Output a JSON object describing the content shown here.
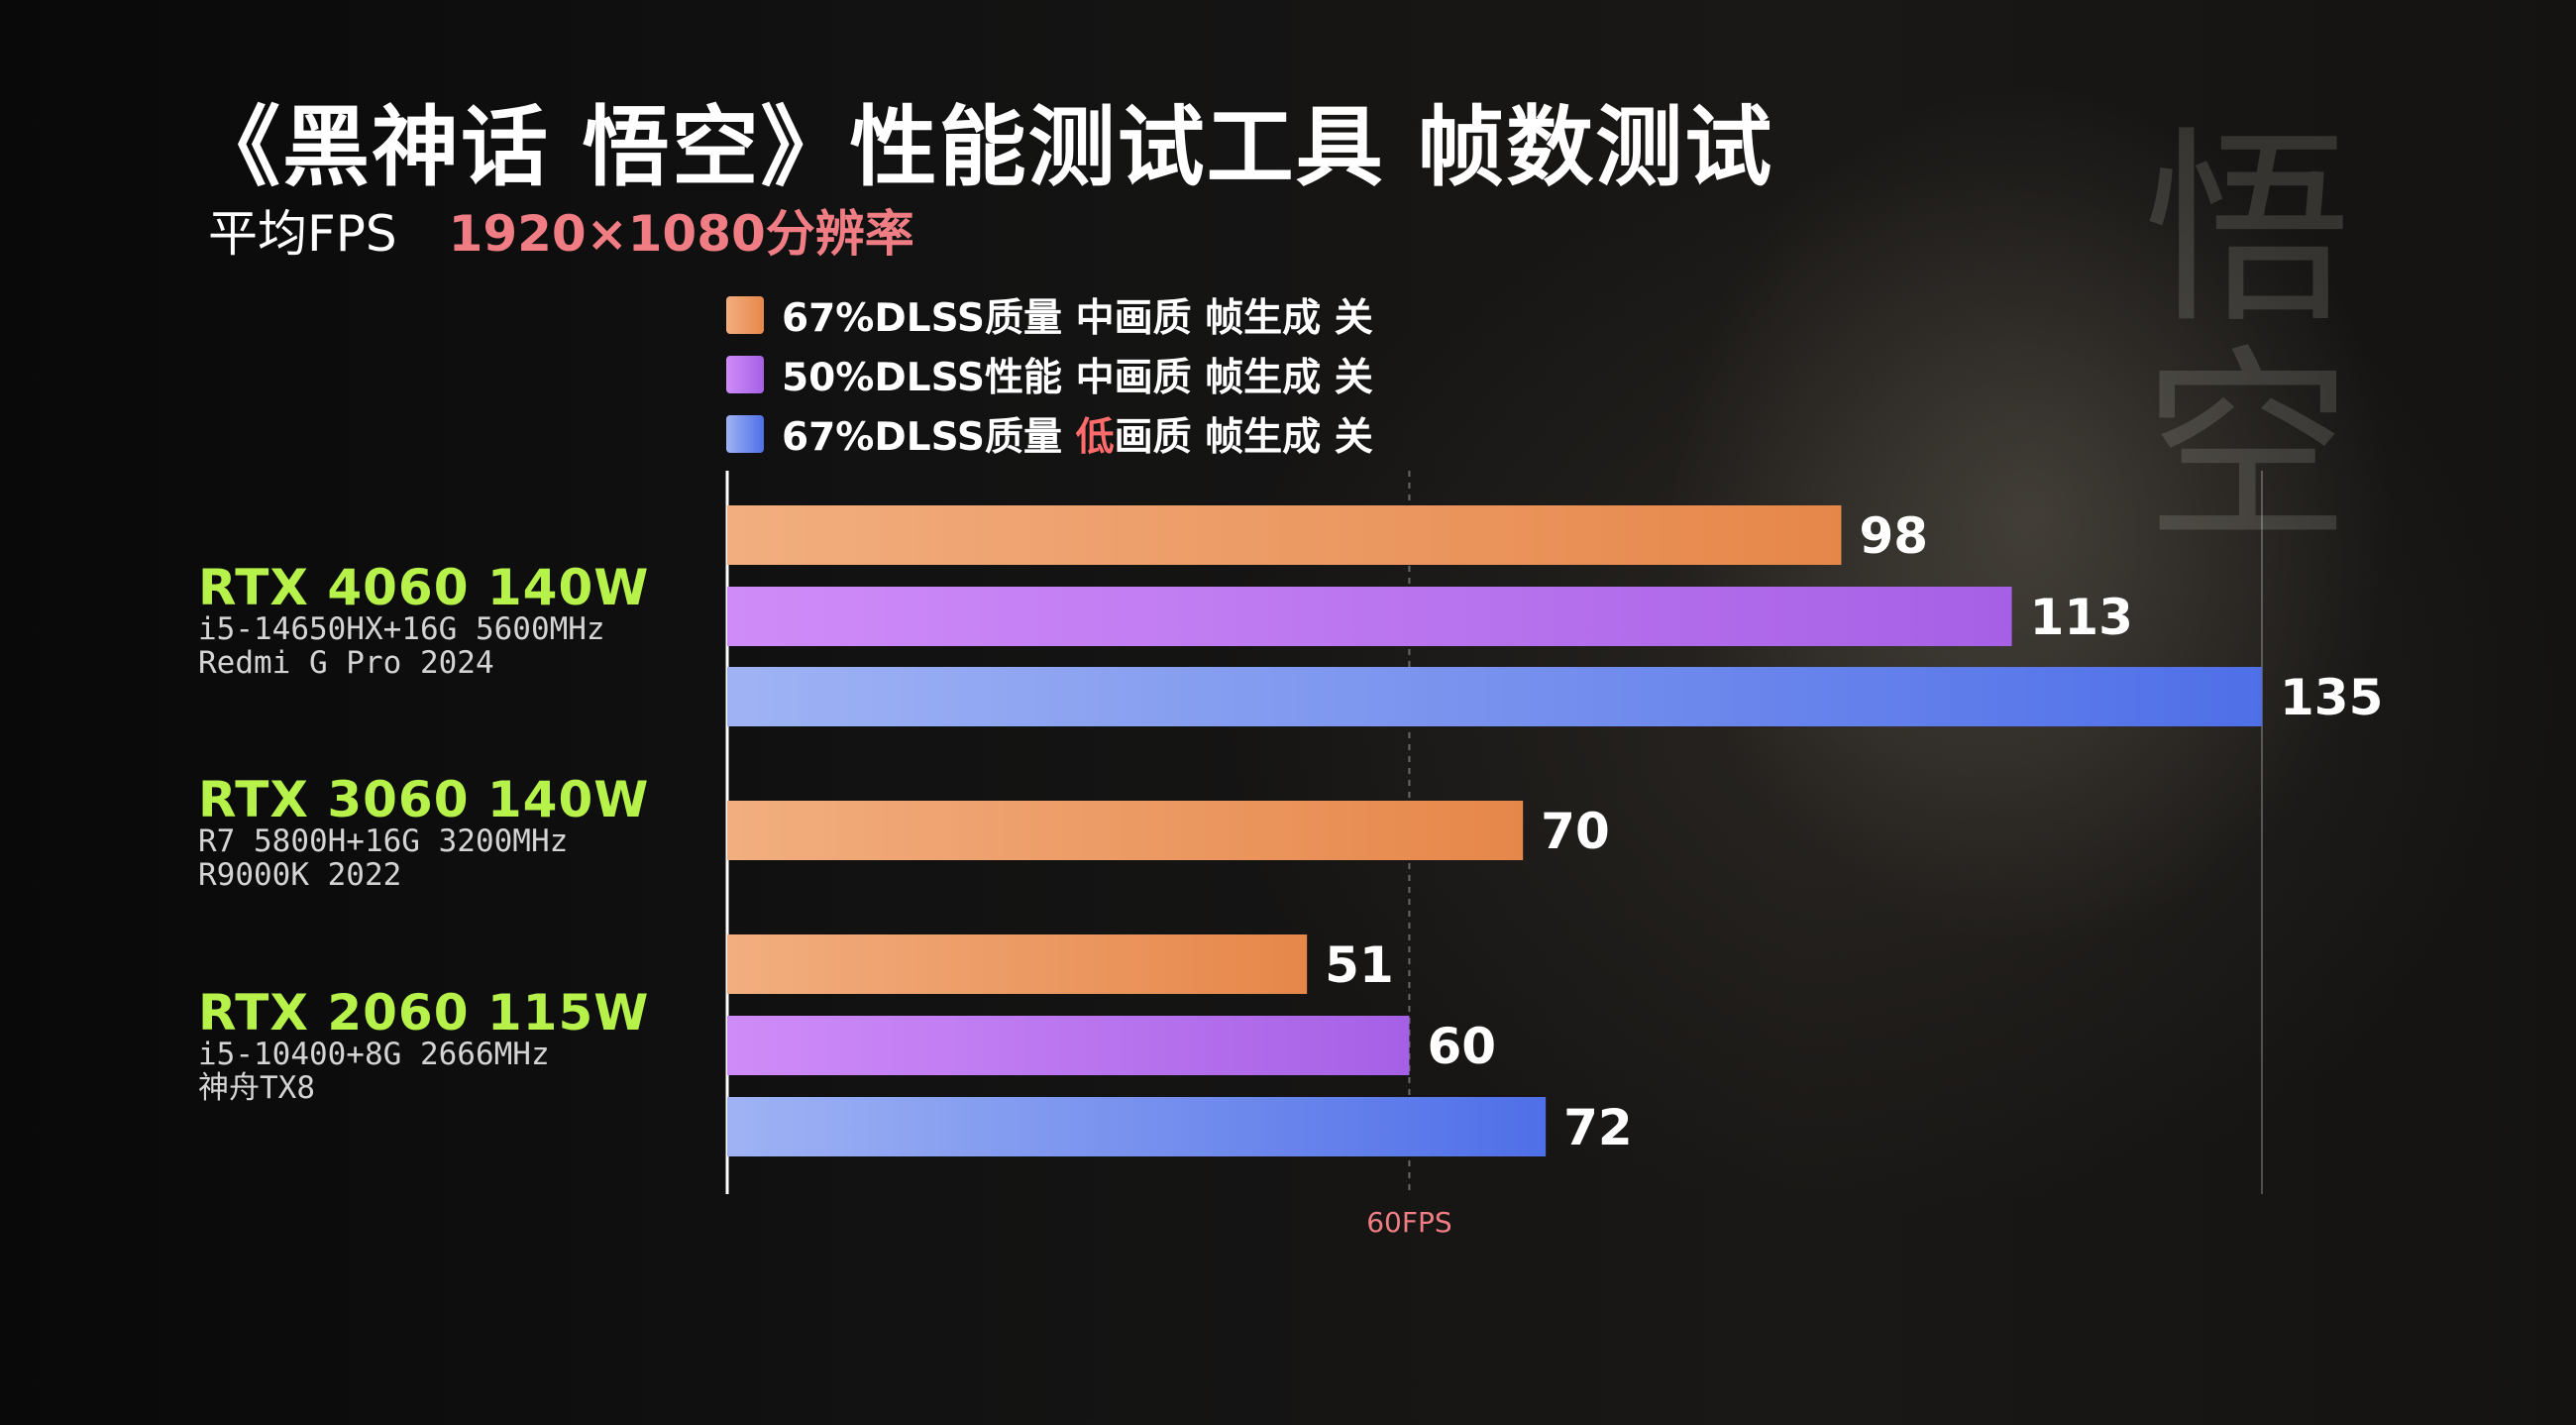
{
  "title": "《黑神话 悟空》性能测试工具 帧数测试",
  "subtitle": {
    "metric": "平均FPS",
    "resolution": "1920×1080分辨率"
  },
  "background_watermark": "悟空",
  "legend": [
    {
      "parts": [
        "67%DLSS质量 中画质 帧生成 关"
      ],
      "color_start": "#f2ae7f",
      "color_end": "#e6874a"
    },
    {
      "parts": [
        "50%DLSS性能 中画质 帧生成 关"
      ],
      "color_start": "#cf8cf8",
      "color_end": "#a660e6"
    },
    {
      "parts": [
        "67%DLSS质量 ",
        "低",
        "画质 帧生成 关"
      ],
      "color_start": "#9fb3f4",
      "color_end": "#4f6fe8",
      "highlight_part": 1,
      "highlight_color": "#ff6b6b"
    }
  ],
  "groups": [
    {
      "gpu": "RTX 4060 140W",
      "specs": [
        "i5-14650HX+16G 5600MHz",
        "Redmi G Pro 2024"
      ]
    },
    {
      "gpu": "RTX 3060 140W",
      "specs": [
        "R7 5800H+16G 3200MHz",
        "R9000K 2022"
      ]
    },
    {
      "gpu": "RTX 2060 115W",
      "specs": [
        "i5-10400+8G 2666MHz",
        "神舟TX8"
      ]
    }
  ],
  "chart_data": {
    "type": "bar",
    "orientation": "horizontal",
    "categories": [
      "RTX 4060 140W",
      "RTX 3060 140W",
      "RTX 2060 115W"
    ],
    "series": [
      {
        "name": "67%DLSS质量 中画质 帧生成 关",
        "values": [
          98,
          70,
          51
        ]
      },
      {
        "name": "50%DLSS性能 中画质 帧生成 关",
        "values": [
          113,
          null,
          60
        ]
      },
      {
        "name": "67%DLSS质量 低画质 帧生成 关",
        "values": [
          135,
          null,
          72
        ]
      }
    ],
    "xlim": [
      0,
      135
    ],
    "reference_line": {
      "value": 60,
      "label": "60FPS",
      "color": "#f07d84"
    },
    "grid": false,
    "legend_position": "top"
  }
}
